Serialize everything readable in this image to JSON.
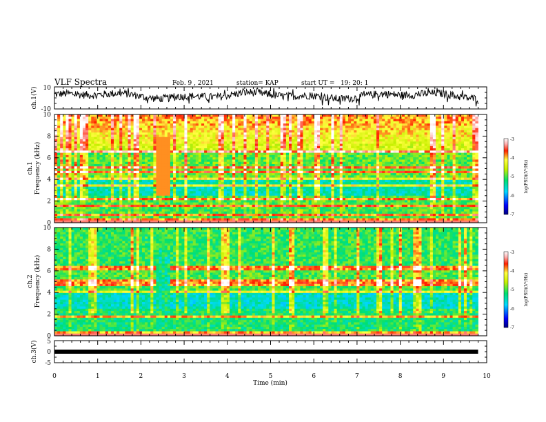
{
  "header": {
    "title": "VLF Spectra",
    "date": "Feb. 9 , 2021",
    "station": "station= KAP",
    "start": "start UT =   19: 20: 1"
  },
  "chart_data": {
    "type": "heatmap",
    "x_axis": {
      "label": "Time (min)",
      "range": [
        0,
        10
      ],
      "ticks": [
        "0",
        "1",
        "2",
        "3",
        "4",
        "5",
        "6",
        "7",
        "8",
        "9",
        "10"
      ],
      "data_extent_min": 9.8
    },
    "panels": [
      {
        "id": "ch1_waveform",
        "type": "line",
        "ylabel": "ch.1(V)",
        "ylim": [
          -10,
          10
        ],
        "yticks": [
          "10",
          "-10"
        ],
        "baseline_v": 2,
        "envelope_v": 5
      },
      {
        "id": "ch1_spectrogram",
        "type": "heatmap",
        "ylabel_line1": "ch.1",
        "ylabel_line2": "Frequency (kHz)",
        "ylim": [
          0,
          10
        ],
        "yticks": [
          "0",
          "2",
          "4",
          "6",
          "8",
          "10"
        ],
        "colorbar": {
          "label": "log(PSD)(V²/Hz)",
          "range": [
            -7,
            -3
          ],
          "ticks": [
            "-3",
            "-4",
            "-5",
            "-6",
            "-7"
          ]
        },
        "bright_lines_khz": [
          0.3,
          0.8,
          1.6,
          2.2,
          3.4,
          4.0,
          4.7,
          5.1,
          6.6
        ],
        "event_min": [
          2.35,
          2.7
        ]
      },
      {
        "id": "ch2_spectrogram",
        "type": "heatmap",
        "ylabel_line1": "ch.2",
        "ylabel_line2": "Frequency (kHz)",
        "ylim": [
          0,
          10
        ],
        "yticks": [
          "0",
          "2",
          "4",
          "6",
          "8",
          "10"
        ],
        "colorbar": {
          "label": "log(PSD)(V²/Hz)",
          "range": [
            -7,
            -3
          ],
          "ticks": [
            "-3",
            "-4",
            "-5",
            "-6",
            "-7"
          ]
        },
        "bright_lines_khz": [
          0.3,
          1.8,
          4.0,
          4.6,
          5.0,
          6.1,
          6.4
        ],
        "event_min": [
          2.35,
          2.7
        ]
      },
      {
        "id": "ch3_voltage",
        "type": "line",
        "ylabel": "ch.3(V)",
        "ylim": [
          -5,
          5
        ],
        "yticks": [
          "5",
          "0",
          "-5"
        ],
        "value_v": 0
      }
    ]
  }
}
